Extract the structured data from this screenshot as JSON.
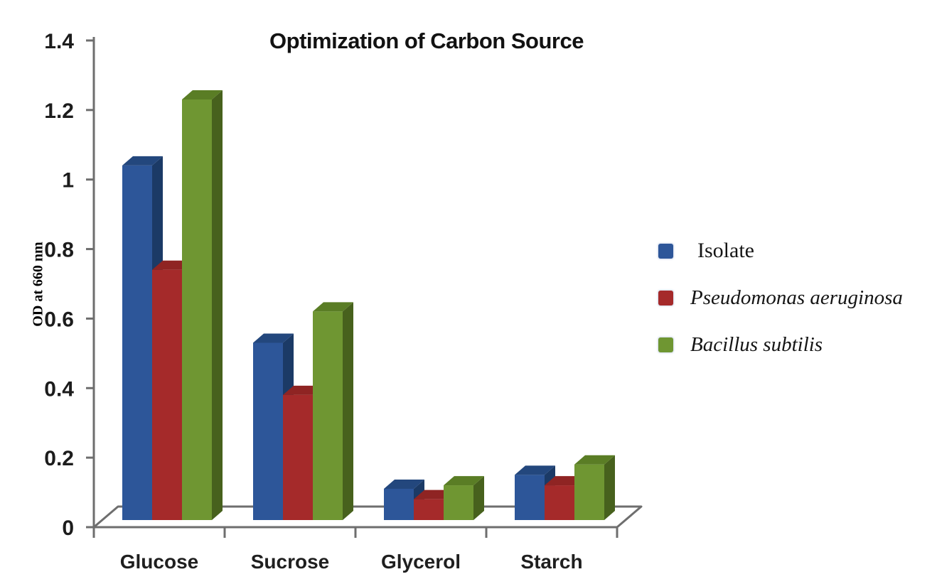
{
  "chart_data": {
    "type": "bar",
    "variant": "3d-grouped",
    "title": "Optimization of Carbon Source",
    "xlabel": "",
    "ylabel": "OD at 660 nm",
    "categories": [
      "Glucose",
      "Sucrose",
      "Glycerol",
      "Starch"
    ],
    "series": [
      {
        "name": "Isolate",
        "italic": false,
        "color": "#2d5699",
        "color_side": "#1b3a66",
        "color_top": "#23477d",
        "values": [
          1.02,
          0.51,
          0.09,
          0.13
        ]
      },
      {
        "name": "Pseudomonas aeruginosa",
        "italic": true,
        "color": "#a52a2a",
        "color_side": "#761c1b",
        "color_top": "#8f2423",
        "values": [
          0.72,
          0.36,
          0.06,
          0.1
        ]
      },
      {
        "name": "Bacillus subtilis",
        "italic": true,
        "color": "#6f9632",
        "color_side": "#47611d",
        "color_top": "#5a7d25",
        "values": [
          1.21,
          0.6,
          0.1,
          0.16
        ]
      }
    ],
    "y_ticks": [
      "0",
      "0.2",
      "0.4",
      "0.6",
      "0.8",
      "1",
      "1.2",
      "1.4"
    ],
    "ylim": [
      0,
      1.4
    ],
    "y_tick_step": 0.2,
    "grid": false,
    "legend_position": "right",
    "axis_color": "#6e6e6e",
    "tick_label_color": "#1c1c1c",
    "category_label_color": "#1f1f1f"
  }
}
